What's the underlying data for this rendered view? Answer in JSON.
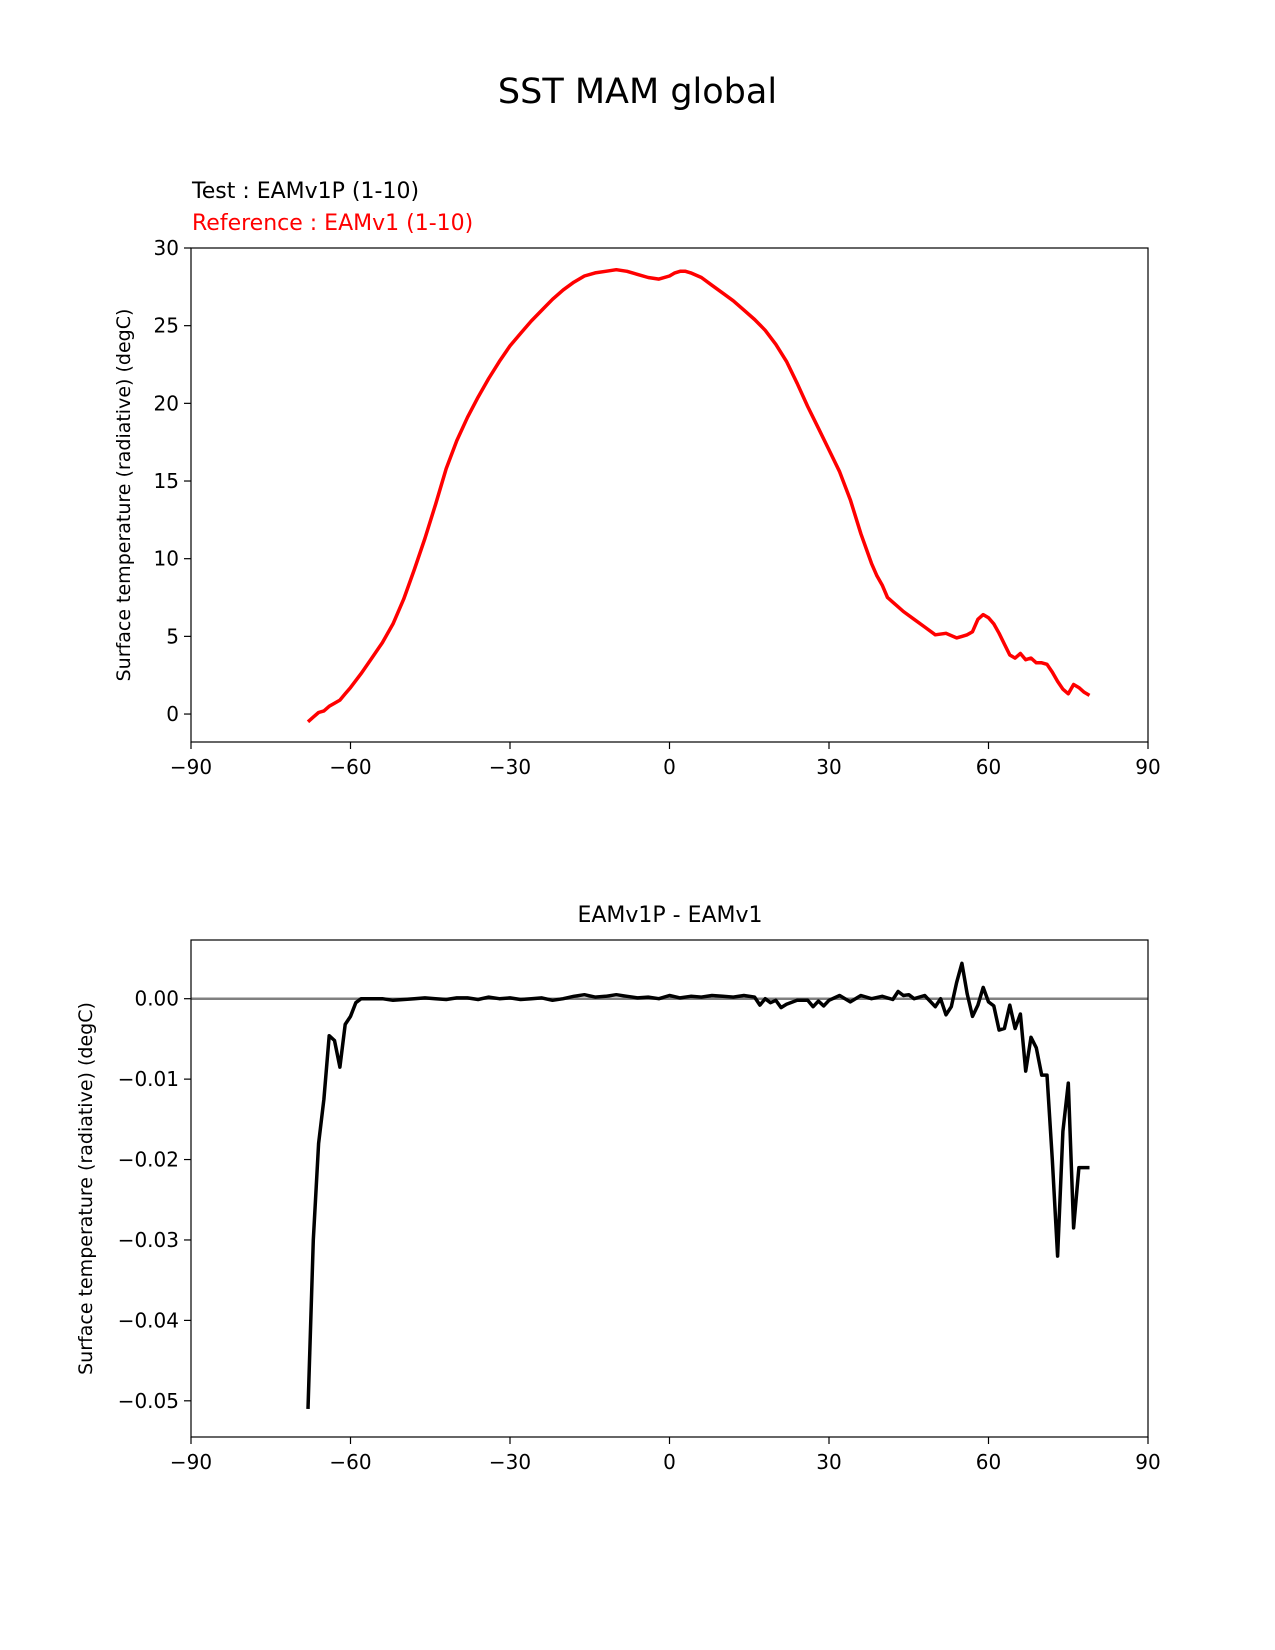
{
  "figure": {
    "title": "SST MAM global"
  },
  "chart_data": [
    {
      "type": "line",
      "title": "",
      "legend_text": [
        {
          "text": "Test : EAMv1P (1-10)",
          "color": "#000000"
        },
        {
          "text": "Reference : EAMv1 (1-10)",
          "color": "#ff0000"
        }
      ],
      "xlabel": "",
      "ylabel": "Surface temperature (radiative) (degC)",
      "xlim": [
        -90,
        90
      ],
      "ylim": [
        -1.8,
        30
      ],
      "xticks": [
        -90,
        -60,
        -30,
        0,
        30,
        60,
        90
      ],
      "xtick_labels": [
        "−90",
        "−60",
        "−30",
        "0",
        "30",
        "60",
        "90"
      ],
      "yticks": [
        0,
        5,
        10,
        15,
        20,
        25,
        30
      ],
      "ytick_labels": [
        "0",
        "5",
        "10",
        "15",
        "20",
        "25",
        "30"
      ],
      "grid": false,
      "series": [
        {
          "name": "Reference : EAMv1 (1-10)",
          "color": "#ff0000",
          "x": [
            -68,
            -67,
            -66,
            -65,
            -64,
            -63,
            -62,
            -61,
            -60,
            -58,
            -56,
            -54,
            -52,
            -50,
            -48,
            -46,
            -44,
            -42,
            -40,
            -38,
            -36,
            -34,
            -32,
            -30,
            -28,
            -26,
            -24,
            -22,
            -20,
            -18,
            -16,
            -14,
            -12,
            -10,
            -8,
            -6,
            -4,
            -2,
            0,
            1,
            2,
            3,
            4,
            6,
            8,
            10,
            12,
            14,
            16,
            18,
            20,
            22,
            24,
            26,
            28,
            30,
            32,
            34,
            36,
            38,
            39,
            40,
            41,
            42,
            43,
            44,
            46,
            48,
            50,
            52,
            54,
            55,
            56,
            57,
            58,
            59,
            60,
            61,
            62,
            63,
            64,
            65,
            66,
            67,
            68,
            69,
            70,
            71,
            72,
            73,
            74,
            75,
            76,
            77,
            78,
            79
          ],
          "y": [
            -0.5,
            -0.2,
            0.1,
            0.2,
            0.5,
            0.7,
            0.9,
            1.3,
            1.7,
            2.6,
            3.6,
            4.6,
            5.8,
            7.4,
            9.3,
            11.3,
            13.5,
            15.8,
            17.6,
            19.1,
            20.4,
            21.6,
            22.7,
            23.7,
            24.5,
            25.3,
            26.0,
            26.7,
            27.3,
            27.8,
            28.2,
            28.4,
            28.5,
            28.6,
            28.5,
            28.3,
            28.1,
            28.0,
            28.2,
            28.4,
            28.5,
            28.5,
            28.4,
            28.1,
            27.6,
            27.1,
            26.6,
            26.0,
            25.4,
            24.7,
            23.8,
            22.7,
            21.3,
            19.8,
            18.4,
            17.0,
            15.6,
            13.8,
            11.6,
            9.7,
            8.9,
            8.3,
            7.5,
            7.2,
            6.9,
            6.6,
            6.1,
            5.6,
            5.1,
            5.2,
            4.9,
            5.0,
            5.1,
            5.3,
            6.1,
            6.4,
            6.2,
            5.8,
            5.2,
            4.5,
            3.8,
            3.6,
            3.9,
            3.5,
            3.6,
            3.3,
            3.3,
            3.2,
            2.7,
            2.1,
            1.6,
            1.3,
            1.9,
            1.7,
            1.4,
            1.2
          ]
        }
      ]
    },
    {
      "type": "line",
      "title": "EAMv1P - EAMv1",
      "xlabel": "",
      "ylabel": "Surface temperature (radiative) (degC)",
      "xlim": [
        -90,
        90
      ],
      "ylim": [
        -0.0545,
        0.0073
      ],
      "xticks": [
        -90,
        -60,
        -30,
        0,
        30,
        60,
        90
      ],
      "xtick_labels": [
        "−90",
        "−60",
        "−30",
        "0",
        "30",
        "60",
        "90"
      ],
      "yticks": [
        0.0,
        -0.01,
        -0.02,
        -0.03,
        -0.04,
        -0.05
      ],
      "ytick_labels": [
        "0.00",
        "−0.01",
        "−0.02",
        "−0.03",
        "−0.04",
        "−0.05"
      ],
      "grid": false,
      "zero_line": {
        "y": 0,
        "color": "#808080"
      },
      "series": [
        {
          "name": "",
          "color": "#000000",
          "x": [
            -68,
            -67,
            -66,
            -65,
            -64,
            -63,
            -62,
            -61,
            -60,
            -59,
            -58,
            -56,
            -54,
            -52,
            -50,
            -48,
            -46,
            -44,
            -42,
            -40,
            -38,
            -36,
            -34,
            -32,
            -30,
            -28,
            -26,
            -24,
            -22,
            -20,
            -18,
            -16,
            -14,
            -12,
            -10,
            -8,
            -6,
            -4,
            -2,
            0,
            2,
            4,
            6,
            8,
            10,
            12,
            14,
            16,
            17,
            18,
            19,
            20,
            21,
            22,
            24,
            26,
            27,
            28,
            29,
            30,
            32,
            34,
            36,
            38,
            40,
            42,
            43,
            44,
            45,
            46,
            48,
            50,
            51,
            52,
            53,
            54,
            55,
            56,
            57,
            58,
            59,
            60,
            61,
            62,
            63,
            64,
            65,
            66,
            67,
            68,
            69,
            70,
            71,
            72,
            73,
            74,
            75,
            76,
            77,
            78,
            79
          ],
          "y": [
            -0.051,
            -0.03,
            -0.018,
            -0.0125,
            -0.0046,
            -0.0052,
            -0.0085,
            -0.0032,
            -0.0022,
            -0.0005,
            0.0,
            0.0,
            0.0,
            -0.0002,
            -0.0001,
            0.0,
            0.0001,
            0.0,
            -0.0001,
            0.0001,
            0.0001,
            -0.0001,
            0.0002,
            0.0,
            0.0001,
            -0.0001,
            0.0,
            0.0001,
            -0.0002,
            0.0,
            0.0003,
            0.0005,
            0.0002,
            0.0003,
            0.0005,
            0.0003,
            0.0001,
            0.0002,
            0.0,
            0.0004,
            0.0001,
            0.0003,
            0.0002,
            0.0004,
            0.0003,
            0.0002,
            0.0004,
            0.0002,
            -0.0008,
            0.0,
            -0.0005,
            -0.0002,
            -0.0011,
            -0.0007,
            -0.0002,
            -0.0002,
            -0.001,
            -0.0003,
            -0.0009,
            -0.0002,
            0.0004,
            -0.0004,
            0.0004,
            0.0,
            0.0003,
            -0.0001,
            0.0009,
            0.0004,
            0.0005,
            0.0,
            0.0004,
            -0.001,
            0.0,
            -0.002,
            -0.001,
            0.002,
            0.0044,
            0.0006,
            -0.0022,
            -0.0008,
            0.0014,
            -0.0004,
            -0.0009,
            -0.0039,
            -0.0037,
            -0.0008,
            -0.0037,
            -0.0019,
            -0.009,
            -0.0048,
            -0.0061,
            -0.0095,
            -0.0095,
            -0.02,
            -0.032,
            -0.0165,
            -0.0105,
            -0.0285,
            -0.021,
            -0.021,
            -0.021
          ]
        }
      ]
    }
  ]
}
